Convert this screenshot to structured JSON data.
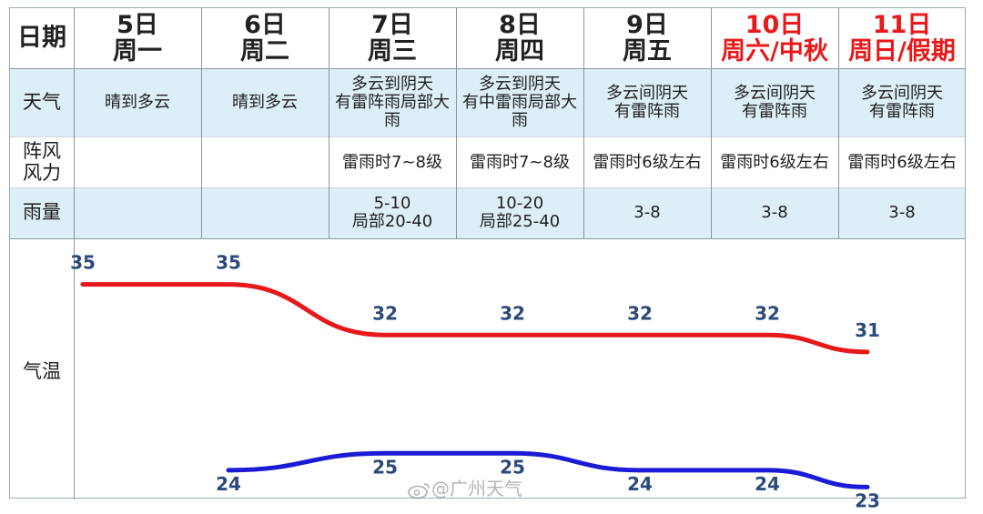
{
  "header": {
    "label": "日期"
  },
  "columns": [
    {
      "date": "5日",
      "week": "周一",
      "holiday": false
    },
    {
      "date": "6日",
      "week": "周二",
      "holiday": false
    },
    {
      "date": "7日",
      "week": "周三",
      "holiday": false
    },
    {
      "date": "8日",
      "week": "周四",
      "holiday": false
    },
    {
      "date": "9日",
      "week": "周五",
      "holiday": false
    },
    {
      "date": "10日",
      "week": "周六/中秋",
      "holiday": true
    },
    {
      "date": "11日",
      "week": "周日/假期",
      "holiday": true
    }
  ],
  "rows": {
    "weather": {
      "label": "天气",
      "values": [
        "晴到多云",
        "晴到多云",
        "多云到阴天\n有雷阵雨局部大\n雨",
        "多云到阴天\n有中雷雨局部大\n雨",
        "多云间阴天\n有雷阵雨",
        "多云间阴天\n有雷阵雨",
        "多云间阴天\n有雷阵雨"
      ]
    },
    "wind": {
      "label": "阵风\n风力",
      "values": [
        "",
        "",
        "雷雨时7~8级",
        "雷雨时7~8级",
        "雷雨时6级左右",
        "雷雨时6级左右",
        "雷雨时6级左右"
      ]
    },
    "rain": {
      "label": "雨量",
      "values": [
        "",
        "",
        "5-10\n局部20-40",
        "10-20\n局部25-40",
        "3-8",
        "3-8",
        "3-8"
      ]
    },
    "temp": {
      "label": "气温"
    }
  },
  "colors": {
    "band": "#dceef6",
    "high_line": "#e8191b",
    "low_line": "#1b1bd6",
    "value_text": "#2b4a7b",
    "holiday_text": "#e8191b"
  },
  "watermark": {
    "text": "@广州天气",
    "icon": "weibo-icon"
  },
  "chart_data": {
    "type": "line",
    "categories": [
      "5日",
      "6日",
      "7日",
      "8日",
      "9日",
      "10日",
      "11日"
    ],
    "ylabel": "气温",
    "series": [
      {
        "values": [
          35,
          35,
          32,
          32,
          32,
          32,
          31
        ],
        "color": "#e8191b"
      },
      {
        "values": [
          null,
          24,
          25,
          25,
          24,
          24,
          23
        ],
        "color": "#1b1bd6"
      }
    ],
    "ylim": [
      22,
      36
    ],
    "grid": false,
    "legend": "none"
  }
}
